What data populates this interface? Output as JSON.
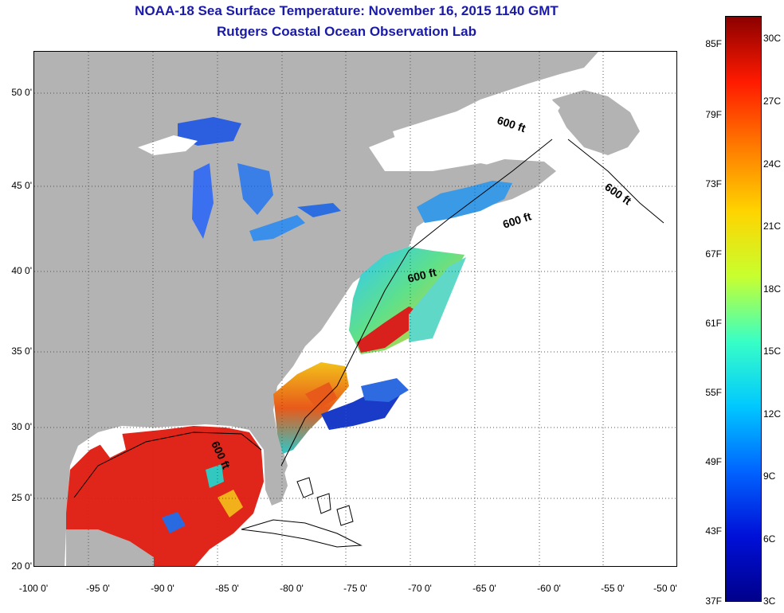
{
  "title": "NOAA-18 Sea Surface Temperature:  November 16, 2015 1140 GMT",
  "subtitle": "Rutgers Coastal Ocean Observation Lab",
  "map": {
    "lat_labels": [
      "50 0'",
      "45 0'",
      "40 0'",
      "35 0'",
      "30 0'",
      "25 0'",
      "20 0'"
    ],
    "lon_labels": [
      "-100 0'",
      "-95 0'",
      "-90 0'",
      "-85 0'",
      "-80 0'",
      "-75 0'",
      "-70 0'",
      "-65 0'",
      "-60 0'",
      "-55 0'",
      "-50 0'"
    ],
    "contour_labels": [
      "600 ft",
      "600 ft",
      "600 ft",
      "600 ft",
      "600 ft"
    ],
    "colors": {
      "land": "#b3b3b3",
      "no_data": "#ffffff",
      "gulf": "#e0261a",
      "gulfstream": "#d8201c",
      "shelf_south": "#e8c21e",
      "shelf_mid": "#32c8c0",
      "lakes": "#2c5ee0",
      "gulf_of_maine": "#3a9ae6"
    }
  },
  "colorbar": {
    "fahrenheit_labels": [
      "85F",
      "79F",
      "73F",
      "67F",
      "61F",
      "55F",
      "49F",
      "43F",
      "37F"
    ],
    "celsius_labels": [
      "30C",
      "27C",
      "24C",
      "21C",
      "18C",
      "15C",
      "12C",
      "9C",
      "6C",
      "3C"
    ],
    "gradient": [
      "#8b0000",
      "#ff1a00",
      "#ff7a00",
      "#ffd400",
      "#c8ff2e",
      "#38ffc6",
      "#00c8ff",
      "#0064ff",
      "#0010d8",
      "#00008b"
    ]
  }
}
